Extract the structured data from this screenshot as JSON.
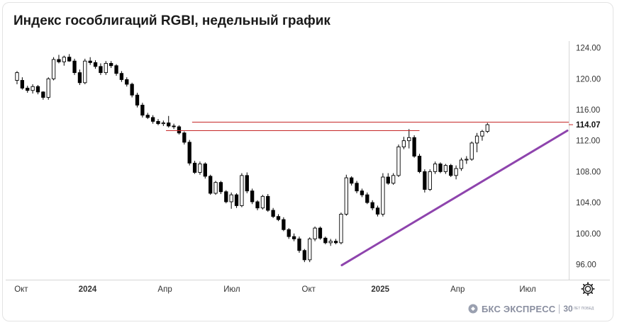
{
  "header": {
    "title": "Индекс гособлигаций RGBI, недельный график"
  },
  "brand": {
    "name": "БКС ЭКСПРЕСС",
    "anniversary": "30",
    "anniversary_sub": "ЛЕТ ПОБЕД"
  },
  "icons": {
    "settings": "gear-icon",
    "brand_mark": "bcs-logo-icon"
  },
  "colors": {
    "bull": "#ffffff",
    "bear": "#000000",
    "resistance": "#c62828",
    "trendline": "#8e44ad",
    "axis_text": "#333333"
  },
  "chart_data": {
    "type": "candlestick",
    "title": "Индекс гособлигаций RGBI, недельный график",
    "y_axis": {
      "ticks": [
        "124.00",
        "120.00",
        "116.00",
        "112.00",
        "108.00",
        "104.00",
        "100.00",
        "96.00"
      ],
      "range": [
        94.3,
        124.7
      ]
    },
    "x_axis": {
      "ticks": [
        "Окт",
        "2024",
        "Апр",
        "Июл",
        "Окт",
        "2025",
        "Апр",
        "Июл"
      ]
    },
    "last_price_label": "114.07",
    "annotations": [
      {
        "type": "horizontal_line",
        "name": "resistance",
        "y": 114.4
      },
      {
        "type": "segment",
        "name": "short-resistance",
        "from": [
          28.5,
          113.3
        ],
        "to": [
          77,
          113.3
        ]
      },
      {
        "type": "trendline",
        "name": "support",
        "from": [
          6.5,
          95.9
        ],
        "to": [
          77,
          113.3
        ]
      }
    ],
    "candles": [
      [
        119.8,
        121.0,
        119.3,
        120.8
      ],
      [
        119.8,
        120.2,
        118.6,
        118.8
      ],
      [
        118.8,
        119.1,
        118.2,
        118.5
      ],
      [
        118.5,
        119.3,
        118.1,
        119.0
      ],
      [
        119.0,
        119.2,
        118.0,
        118.3
      ],
      [
        118.3,
        118.4,
        117.3,
        117.6
      ],
      [
        117.6,
        120.2,
        117.3,
        120.0
      ],
      [
        120.0,
        122.8,
        119.8,
        122.5
      ],
      [
        122.5,
        123.1,
        122.0,
        122.2
      ],
      [
        122.2,
        123.0,
        121.7,
        122.8
      ],
      [
        122.8,
        123.2,
        122.2,
        122.3
      ],
      [
        122.3,
        122.6,
        120.5,
        120.8
      ],
      [
        120.8,
        121.2,
        119.2,
        119.5
      ],
      [
        119.5,
        122.6,
        119.3,
        122.3
      ],
      [
        122.3,
        122.8,
        121.8,
        122.1
      ],
      [
        122.1,
        122.4,
        121.3,
        121.6
      ],
      [
        121.6,
        122.0,
        120.5,
        120.8
      ],
      [
        120.8,
        122.3,
        120.5,
        122.0
      ],
      [
        122.0,
        122.3,
        121.4,
        121.7
      ],
      [
        121.7,
        121.9,
        120.4,
        120.7
      ],
      [
        120.7,
        121.0,
        119.6,
        119.9
      ],
      [
        119.9,
        120.2,
        119.0,
        119.3
      ],
      [
        119.3,
        119.5,
        117.6,
        117.9
      ],
      [
        117.9,
        118.2,
        116.3,
        116.6
      ],
      [
        116.6,
        116.9,
        115.0,
        115.3
      ],
      [
        115.3,
        115.6,
        114.8,
        115.0
      ],
      [
        115.0,
        115.3,
        114.2,
        114.5
      ],
      [
        114.5,
        114.8,
        114.0,
        114.2
      ],
      [
        114.2,
        114.6,
        113.9,
        114.3
      ],
      [
        114.3,
        115.2,
        113.7,
        113.9
      ],
      [
        113.9,
        114.2,
        113.5,
        113.8
      ],
      [
        113.8,
        114.0,
        112.8,
        113.0
      ],
      [
        113.0,
        113.2,
        111.5,
        111.8
      ],
      [
        111.8,
        112.1,
        108.8,
        109.1
      ],
      [
        109.1,
        109.4,
        107.7,
        107.9
      ],
      [
        107.9,
        109.3,
        107.6,
        109.0
      ],
      [
        109.0,
        109.2,
        107.1,
        107.4
      ],
      [
        107.4,
        107.6,
        105.0,
        105.2
      ],
      [
        105.2,
        106.8,
        105.0,
        106.6
      ],
      [
        106.6,
        106.8,
        105.1,
        105.4
      ],
      [
        105.4,
        105.6,
        103.9,
        104.1
      ],
      [
        104.1,
        105.3,
        103.2,
        105.0
      ],
      [
        105.0,
        105.2,
        103.3,
        103.6
      ],
      [
        103.6,
        107.8,
        103.4,
        107.5
      ],
      [
        107.5,
        107.9,
        105.2,
        105.5
      ],
      [
        105.5,
        105.8,
        103.8,
        104.1
      ],
      [
        104.1,
        104.3,
        103.0,
        103.3
      ],
      [
        103.3,
        105.0,
        103.1,
        104.8
      ],
      [
        104.8,
        105.1,
        102.8,
        103.0
      ],
      [
        103.0,
        103.3,
        102.0,
        102.2
      ],
      [
        102.2,
        102.5,
        101.6,
        101.8
      ],
      [
        101.8,
        102.1,
        100.3,
        100.5
      ],
      [
        100.5,
        100.7,
        99.3,
        99.6
      ],
      [
        99.6,
        100.0,
        99.0,
        99.3
      ],
      [
        99.3,
        99.6,
        97.5,
        97.8
      ],
      [
        97.8,
        98.0,
        96.3,
        96.6
      ],
      [
        96.6,
        99.5,
        96.3,
        99.3
      ],
      [
        99.3,
        100.9,
        99.0,
        100.7
      ],
      [
        100.7,
        100.9,
        99.2,
        99.4
      ],
      [
        99.4,
        99.6,
        98.6,
        98.8
      ],
      [
        98.8,
        99.3,
        98.4,
        99.0
      ],
      [
        99.0,
        99.3,
        98.6,
        98.8
      ],
      [
        98.8,
        102.7,
        98.6,
        102.5
      ],
      [
        102.5,
        107.6,
        102.3,
        107.2
      ],
      [
        107.2,
        107.4,
        106.2,
        106.5
      ],
      [
        106.5,
        106.8,
        105.2,
        105.5
      ],
      [
        105.5,
        105.8,
        104.7,
        105.0
      ],
      [
        105.0,
        105.3,
        103.8,
        104.0
      ],
      [
        104.0,
        104.3,
        103.0,
        103.3
      ],
      [
        103.3,
        103.6,
        102.2,
        102.5
      ],
      [
        102.5,
        107.8,
        102.2,
        107.3
      ],
      [
        107.3,
        107.8,
        106.3,
        106.5
      ],
      [
        106.5,
        107.8,
        106.3,
        107.5
      ],
      [
        107.5,
        111.5,
        107.3,
        111.2
      ],
      [
        111.2,
        112.5,
        110.9,
        112.0
      ],
      [
        112.0,
        113.5,
        111.0,
        112.4
      ],
      [
        112.4,
        112.7,
        109.8,
        110.0
      ],
      [
        110.0,
        110.3,
        107.8,
        108.0
      ],
      [
        108.0,
        108.3,
        105.3,
        105.7
      ],
      [
        105.7,
        108.3,
        105.5,
        108.0
      ],
      [
        108.0,
        109.3,
        107.7,
        109.0
      ],
      [
        109.0,
        109.2,
        107.8,
        108.0
      ],
      [
        108.0,
        109.0,
        107.7,
        108.8
      ],
      [
        108.8,
        109.0,
        107.3,
        107.5
      ],
      [
        107.5,
        108.8,
        107.0,
        108.4
      ],
      [
        108.4,
        109.8,
        108.1,
        109.5
      ],
      [
        109.5,
        110.0,
        109.0,
        109.6
      ],
      [
        109.6,
        111.9,
        109.4,
        111.7
      ],
      [
        111.7,
        113.0,
        110.5,
        112.6
      ],
      [
        112.6,
        113.4,
        112.0,
        113.2
      ],
      [
        113.2,
        114.3,
        113.0,
        114.07
      ]
    ]
  }
}
